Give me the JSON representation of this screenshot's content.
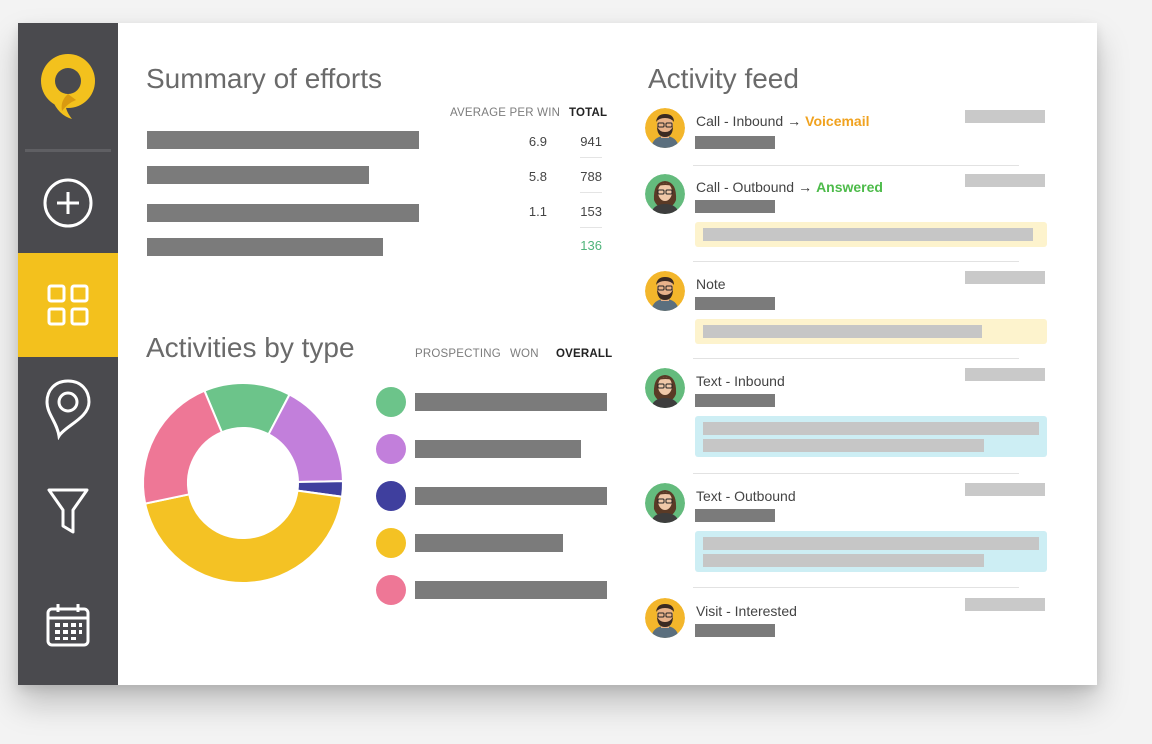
{
  "sidebar": {
    "items": [
      {
        "name": "add",
        "icon": "plus-circle-icon"
      },
      {
        "name": "dashboard",
        "icon": "grid-icon",
        "active": true
      },
      {
        "name": "map",
        "icon": "map-pin-icon"
      },
      {
        "name": "funnel",
        "icon": "funnel-icon"
      },
      {
        "name": "calendar",
        "icon": "calendar-icon"
      }
    ],
    "accent": "#f3c11d",
    "background": "#4a4a4e"
  },
  "summary": {
    "title": "Summary of efforts",
    "col_avg": "AVERAGE PER WIN",
    "col_total": "TOTAL",
    "rows": [
      {
        "avg": "6.9",
        "total": "941"
      },
      {
        "avg": "5.8",
        "total": "788"
      },
      {
        "avg": "1.1",
        "total": "153"
      },
      {
        "avg": "",
        "total": "136"
      }
    ]
  },
  "activities": {
    "title": "Activities by type",
    "filters": [
      "PROSPECTING",
      "WON",
      "OVERALL"
    ],
    "active_filter": "OVERALL",
    "legend_colors": [
      "#6cc48a",
      "#c27fdb",
      "#3f3f9e",
      "#f4c224",
      "#ee7796"
    ]
  },
  "chart_data": {
    "type": "pie",
    "donut": true,
    "slices": [
      {
        "color": "#6cc48a",
        "value": 14
      },
      {
        "color": "#c27fdb",
        "value": 17
      },
      {
        "color": "#3f3f9e",
        "value": 2.5
      },
      {
        "color": "#f4c224",
        "value": 44.5
      },
      {
        "color": "#ee7796",
        "value": 22
      }
    ]
  },
  "feed": {
    "title": "Activity feed",
    "arrow": "→",
    "items": [
      {
        "title": "Call - Inbound",
        "status": "Voicemail",
        "status_color": "#f0a21f",
        "avatar": "man"
      },
      {
        "title": "Call - Outbound",
        "status": "Answered",
        "status_color": "#4dbb4a",
        "avatar": "woman"
      },
      {
        "title": "Note",
        "status": "",
        "avatar": "man"
      },
      {
        "title": "Text - Inbound",
        "status": "",
        "avatar": "woman"
      },
      {
        "title": "Text - Outbound",
        "status": "",
        "avatar": "woman"
      },
      {
        "title": "Visit - Interested",
        "status": "",
        "avatar": "man"
      }
    ]
  }
}
